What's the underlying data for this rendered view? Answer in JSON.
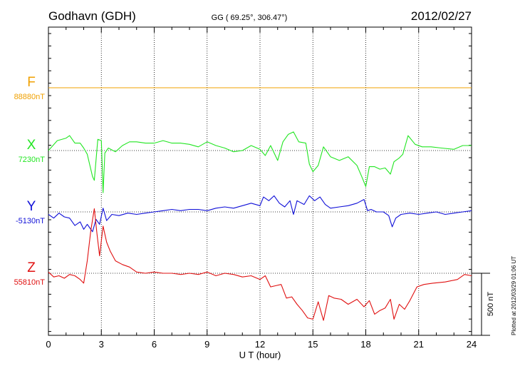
{
  "header": {
    "station": "Godhavn (GDH)",
    "coords": "GG ( 69.25°, 306.47°)",
    "date": "2012/02/27"
  },
  "side_note": "Plotted at 2012/03/29 01:06 UT",
  "colors": {
    "F": "#f0a000",
    "X": "#22e622",
    "Y": "#1010d8",
    "Z": "#e01010",
    "axis": "#000000"
  },
  "chart_data": {
    "type": "line",
    "xlabel": "U T (hour)",
    "xlim": [
      0,
      24
    ],
    "x_ticks": [
      "0",
      "3",
      "6",
      "9",
      "12",
      "15",
      "18",
      "21",
      "24"
    ],
    "scale_bar": {
      "label": "500 nT",
      "value_nT": 500
    },
    "series": [
      {
        "name": "F",
        "baseline_label": "88880nT",
        "baseline": 88880,
        "color": "#f0a000",
        "x": [
          0,
          24
        ],
        "y": [
          88880,
          88880
        ]
      },
      {
        "name": "X",
        "baseline_label": "7230nT",
        "baseline": 7230,
        "color": "#22e622",
        "x": [
          0,
          0.5,
          1,
          1.2,
          1.5,
          1.8,
          2.0,
          2.2,
          2.5,
          2.6,
          2.8,
          3.0,
          3.1,
          3.2,
          3.4,
          3.8,
          4.2,
          4.6,
          5,
          5.5,
          6,
          6.5,
          7,
          7.5,
          8,
          8.5,
          9,
          9.5,
          10,
          10.5,
          11,
          11.5,
          12,
          12.3,
          12.6,
          13,
          13.3,
          13.6,
          13.9,
          14.2,
          14.6,
          14.8,
          15,
          15.3,
          15.6,
          16,
          16.5,
          17,
          17.5,
          17.8,
          18,
          18.2,
          18.5,
          18.8,
          19.1,
          19.4,
          19.6,
          19.9,
          20.1,
          20.4,
          20.8,
          21.2,
          21.7,
          22.3,
          23,
          23.5,
          24
        ],
        "y": [
          7230,
          7310,
          7330,
          7350,
          7290,
          7290,
          7250,
          7200,
          7020,
          6990,
          7320,
          7310,
          6890,
          7210,
          7250,
          7220,
          7270,
          7300,
          7300,
          7290,
          7290,
          7310,
          7290,
          7290,
          7280,
          7260,
          7300,
          7270,
          7250,
          7220,
          7230,
          7270,
          7240,
          7190,
          7270,
          7150,
          7300,
          7360,
          7380,
          7300,
          7290,
          7120,
          7060,
          7110,
          7260,
          7180,
          7150,
          7180,
          7110,
          7010,
          6940,
          7100,
          7100,
          7080,
          7090,
          7040,
          7140,
          7170,
          7200,
          7350,
          7280,
          7260,
          7260,
          7250,
          7240,
          7270,
          7270
        ]
      },
      {
        "name": "Y",
        "baseline_label": "-5130nT",
        "baseline": -5130,
        "color": "#1010d8",
        "x": [
          0,
          0.3,
          0.6,
          0.9,
          1.2,
          1.5,
          1.8,
          2.0,
          2.2,
          2.5,
          2.7,
          2.9,
          3.1,
          3.3,
          3.6,
          4,
          4.5,
          5,
          5.5,
          6,
          6.5,
          7,
          7.5,
          8,
          8.5,
          9,
          9.5,
          10,
          10.5,
          11,
          11.5,
          12,
          12.2,
          12.5,
          12.8,
          13.1,
          13.4,
          13.7,
          13.9,
          14.1,
          14.5,
          14.8,
          15.1,
          15.4,
          15.7,
          16,
          16.5,
          17,
          17.5,
          17.9,
          18.1,
          18.3,
          18.6,
          19,
          19.3,
          19.5,
          19.7,
          20,
          20.5,
          21,
          21.5,
          22,
          22.5,
          23,
          23.5,
          24
        ],
        "y": [
          -5150,
          -5180,
          -5140,
          -5170,
          -5180,
          -5240,
          -5210,
          -5270,
          -5230,
          -5290,
          -5190,
          -5230,
          -5100,
          -5200,
          -5150,
          -5160,
          -5140,
          -5150,
          -5140,
          -5130,
          -5120,
          -5110,
          -5120,
          -5110,
          -5110,
          -5120,
          -5100,
          -5090,
          -5100,
          -5080,
          -5060,
          -5080,
          -5010,
          -5040,
          -5000,
          -5060,
          -5090,
          -5040,
          -5150,
          -5040,
          -5070,
          -5000,
          -5040,
          -5010,
          -5070,
          -5100,
          -5090,
          -5080,
          -5060,
          -5030,
          -5120,
          -5110,
          -5130,
          -5130,
          -5160,
          -5250,
          -5180,
          -5150,
          -5140,
          -5150,
          -5140,
          -5130,
          -5150,
          -5140,
          -5130,
          -5120
        ]
      },
      {
        "name": "Z",
        "baseline_label": "55810nT",
        "baseline": 55810,
        "color": "#e01010",
        "x": [
          0,
          0.3,
          0.6,
          0.9,
          1.2,
          1.5,
          1.8,
          2.0,
          2.2,
          2.4,
          2.6,
          2.75,
          2.9,
          3.1,
          3.3,
          3.5,
          3.8,
          4.2,
          4.6,
          5,
          5.5,
          6,
          6.5,
          7,
          7.5,
          8,
          8.5,
          9,
          9.5,
          10,
          10.5,
          11,
          11.5,
          12,
          12.3,
          12.6,
          12.9,
          13.2,
          13.5,
          13.8,
          14.1,
          14.4,
          14.7,
          15,
          15.3,
          15.6,
          15.9,
          16.2,
          16.6,
          17,
          17.5,
          17.9,
          18.2,
          18.5,
          18.8,
          19.1,
          19.4,
          19.6,
          19.9,
          20.2,
          20.5,
          20.9,
          21.3,
          21.8,
          22.5,
          23.2,
          23.6,
          24
        ],
        "y": [
          55820,
          55780,
          55790,
          55770,
          55800,
          55790,
          55760,
          55730,
          55910,
          56150,
          56330,
          56130,
          55950,
          56190,
          56060,
          55990,
          55910,
          55880,
          55860,
          55820,
          55810,
          55820,
          55810,
          55810,
          55800,
          55810,
          55800,
          55820,
          55790,
          55810,
          55800,
          55780,
          55790,
          55760,
          55790,
          55700,
          55710,
          55720,
          55610,
          55620,
          55560,
          55510,
          55450,
          55440,
          55580,
          55430,
          55630,
          55610,
          55600,
          55560,
          55600,
          55540,
          55590,
          55480,
          55510,
          55530,
          55600,
          55440,
          55560,
          55520,
          55590,
          55700,
          55720,
          55730,
          55740,
          55760,
          55800,
          55790
        ]
      }
    ]
  }
}
